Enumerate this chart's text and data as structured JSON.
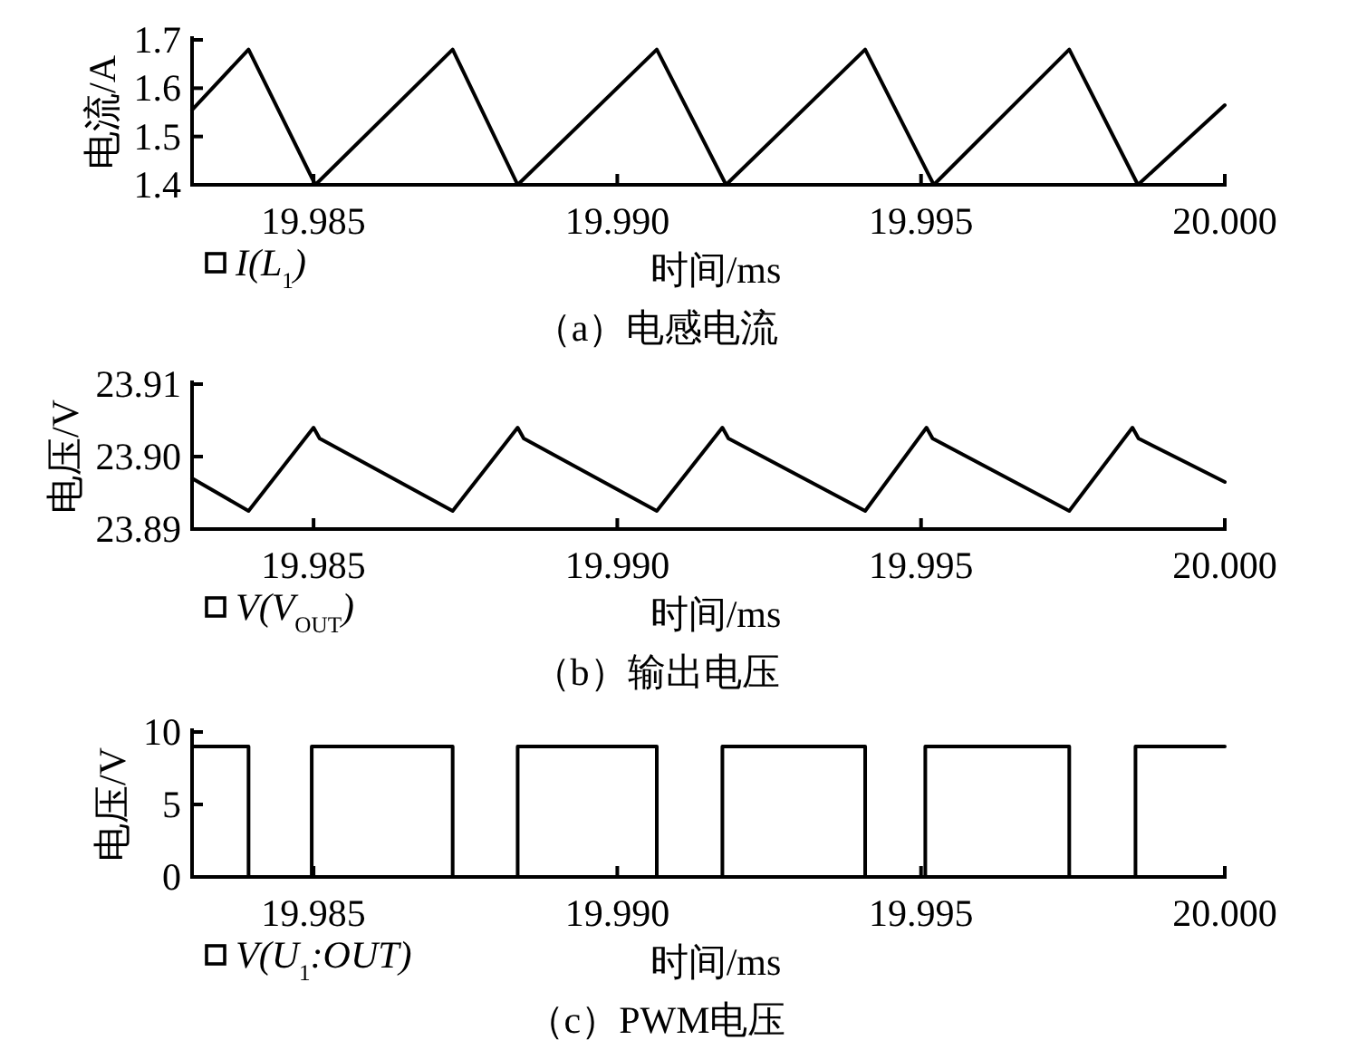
{
  "chart_data": [
    {
      "type": "line",
      "title": "（a）电感电流",
      "xlabel": "时间/ms",
      "ylabel": "电流/A",
      "xlim": [
        19.983,
        20.0
      ],
      "ylim": [
        1.4,
        1.7
      ],
      "xticks": [
        {
          "value": 19.985,
          "label": "19.985"
        },
        {
          "value": 19.99,
          "label": "19.990"
        },
        {
          "value": 19.995,
          "label": "19.995"
        },
        {
          "value": 20.0,
          "label": "20.000"
        }
      ],
      "yticks": [
        1.4,
        1.5,
        1.6,
        1.7
      ],
      "grid": false,
      "legend": "bottom left",
      "marker": "none",
      "line_style": "solid",
      "series": [
        {
          "name": "I(L$_{1}$)",
          "color": "#000000",
          "x": [
            19.983,
            19.98393,
            19.98503,
            19.98729,
            19.98836,
            19.99065,
            19.99179,
            19.99408,
            19.99521,
            19.99744,
            19.99857,
            20.0
          ],
          "values": [
            1.555,
            1.68,
            1.4,
            1.68,
            1.4,
            1.68,
            1.4,
            1.68,
            1.4,
            1.68,
            1.4,
            1.565
          ]
        }
      ]
    },
    {
      "type": "line",
      "title": "（b）输出电压",
      "xlabel": "时间/ms",
      "ylabel": "电压/V",
      "xlim": [
        19.983,
        20.0
      ],
      "ylim": [
        23.89,
        23.91
      ],
      "xticks": [
        {
          "value": 19.985,
          "label": "19.985"
        },
        {
          "value": 19.99,
          "label": "19.990"
        },
        {
          "value": 19.995,
          "label": "19.995"
        },
        {
          "value": 20.0,
          "label": "20.000"
        }
      ],
      "yticks": [
        23.89,
        {
          "value": 23.9,
          "label": "23.90"
        },
        23.91
      ],
      "grid": false,
      "legend": "bottom left",
      "marker": "none",
      "line_style": "solid",
      "series": [
        {
          "name": "V(V$_{OUT}$)",
          "color": "#000000",
          "x": [
            19.983,
            19.98393,
            19.985,
            19.9851,
            19.98729,
            19.98836,
            19.98846,
            19.99065,
            19.99173,
            19.99183,
            19.99408,
            19.99509,
            19.99519,
            19.99744,
            19.99848,
            19.99858,
            20.0
          ],
          "values": [
            23.897,
            23.8925,
            23.904,
            23.9025,
            23.8925,
            23.904,
            23.9025,
            23.8925,
            23.904,
            23.9025,
            23.8925,
            23.904,
            23.9025,
            23.8925,
            23.904,
            23.9025,
            23.8965
          ]
        }
      ]
    },
    {
      "type": "line",
      "title": "（c）PWM电压",
      "xlabel": "时间/ms",
      "ylabel": "电压/V",
      "xlim": [
        19.983,
        20.0
      ],
      "ylim": [
        0,
        10
      ],
      "xticks": [
        {
          "value": 19.985,
          "label": "19.985"
        },
        {
          "value": 19.99,
          "label": "19.990"
        },
        {
          "value": 19.995,
          "label": "19.995"
        },
        {
          "value": 20.0,
          "label": "20.000"
        }
      ],
      "yticks": [
        0,
        5,
        10
      ],
      "grid": false,
      "legend": "bottom left",
      "marker": "none",
      "line_style": "solid",
      "series": [
        {
          "name": "V(U$_{1}$:OUT)",
          "color": "#000000",
          "x": [
            19.983,
            19.98393,
            19.98393,
            19.98497,
            19.98497,
            19.98729,
            19.98729,
            19.98836,
            19.98836,
            19.99065,
            19.99065,
            19.99173,
            19.99173,
            19.99408,
            19.99408,
            19.99507,
            19.99507,
            19.99744,
            19.99744,
            19.99853,
            19.99853,
            20.0
          ],
          "values": [
            9,
            9,
            0,
            0,
            9,
            9,
            0,
            0,
            9,
            9,
            0,
            0,
            9,
            9,
            0,
            0,
            9,
            9,
            0,
            0,
            9,
            9
          ]
        }
      ]
    }
  ]
}
